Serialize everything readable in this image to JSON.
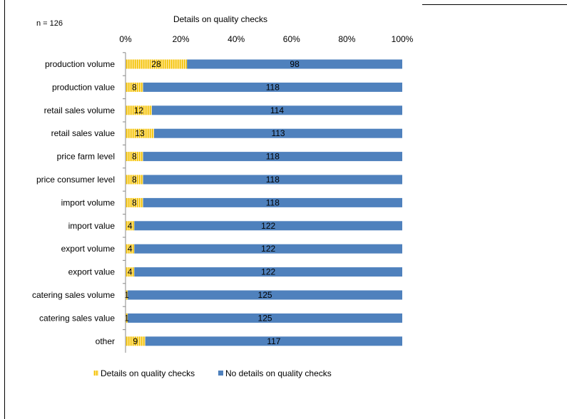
{
  "chart_data": {
    "type": "bar",
    "stacked": "percent",
    "orientation": "horizontal",
    "title": "Details  on quality checks",
    "note": "n = 126",
    "categories": [
      "production volume",
      "production value",
      "retail sales volume",
      "retail sales value",
      "price farm level",
      "price consumer level",
      "import volume",
      "import value",
      "export volume",
      "export value",
      "catering sales volume",
      "catering sales value",
      "other"
    ],
    "series": [
      {
        "name": "Details on quality checks",
        "color": "#FFD966",
        "pattern": "vertical-stripes",
        "values": [
          28,
          8,
          12,
          13,
          8,
          8,
          8,
          4,
          4,
          4,
          1,
          1,
          9
        ]
      },
      {
        "name": "No details on quality checks",
        "color": "#4F81BD",
        "values": [
          98,
          118,
          114,
          113,
          118,
          118,
          118,
          122,
          122,
          122,
          125,
          125,
          117
        ]
      }
    ],
    "x_ticks": [
      "0%",
      "20%",
      "40%",
      "60%",
      "80%",
      "100%"
    ],
    "xlim": [
      0,
      100
    ],
    "grid": false,
    "legend_position": "bottom"
  }
}
